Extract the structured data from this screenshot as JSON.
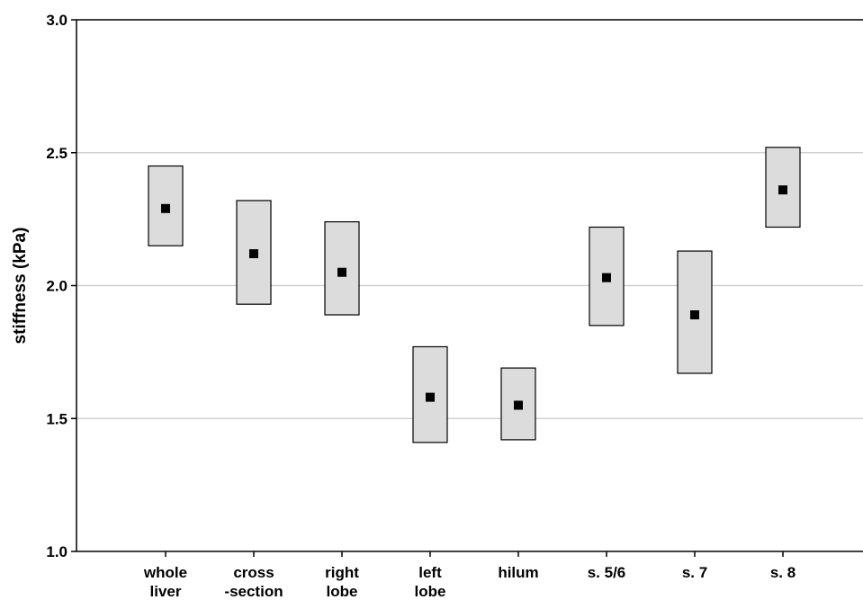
{
  "chart_data": {
    "type": "box",
    "title": "",
    "xlabel": "",
    "ylabel": "stiffness (kPa)",
    "ylim": [
      1.0,
      3.0
    ],
    "yticks": [
      "1.0",
      "1.5",
      "2.0",
      "2.5",
      "3.0"
    ],
    "grid": true,
    "categories": [
      [
        "whole",
        "liver"
      ],
      [
        "cross",
        "-section"
      ],
      [
        "right",
        "lobe"
      ],
      [
        "left",
        "lobe"
      ],
      [
        "hilum"
      ],
      [
        "s. 5/6"
      ],
      [
        "s. 7"
      ],
      [
        "s. 8"
      ]
    ],
    "series": [
      {
        "mean": [
          2.29,
          2.12,
          2.05,
          1.58,
          1.55,
          2.03,
          1.89,
          2.36
        ],
        "lower": [
          2.15,
          1.93,
          1.89,
          1.41,
          1.42,
          1.85,
          1.67,
          2.22
        ],
        "upper": [
          2.45,
          2.32,
          2.24,
          1.77,
          1.69,
          2.22,
          2.13,
          2.52
        ]
      }
    ],
    "colors": {
      "box_fill": "#dcdcdc",
      "box_stroke": "#000000",
      "marker": "#000000",
      "grid": "#c8c8c8",
      "axis": "#000000"
    }
  }
}
